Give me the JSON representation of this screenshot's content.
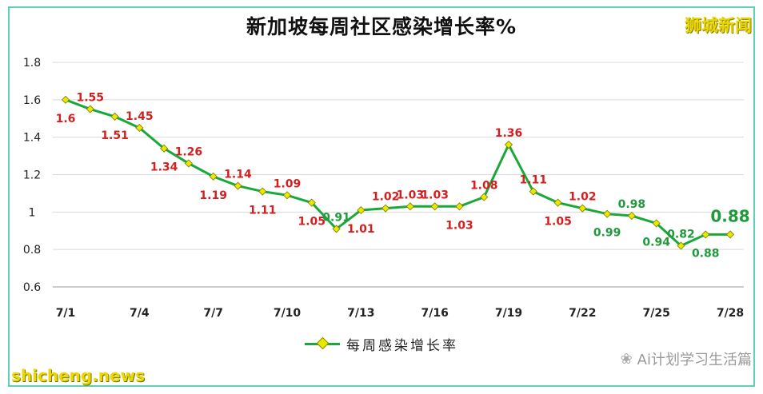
{
  "chart_data": {
    "type": "line",
    "title": "新加坡每周社区感染增长率%",
    "ylim": [
      0.6,
      1.8
    ],
    "yticks": [
      "0.6",
      "0.8",
      "1",
      "1.2",
      "1.4",
      "1.6",
      "1.8"
    ],
    "xtick_labels": [
      "7/1",
      "7/4",
      "7/7",
      "7/10",
      "7/13",
      "7/16",
      "7/19",
      "7/22",
      "7/25",
      "7/28"
    ],
    "categories": [
      "7/1",
      "7/2",
      "7/3",
      "7/4",
      "7/5",
      "7/6",
      "7/7",
      "7/8",
      "7/9",
      "7/10",
      "7/11",
      "7/12",
      "7/13",
      "7/14",
      "7/15",
      "7/16",
      "7/17",
      "7/18",
      "7/19",
      "7/20",
      "7/21",
      "7/22",
      "7/23",
      "7/24",
      "7/25",
      "7/26",
      "7/27",
      "7/28"
    ],
    "series": [
      {
        "name": "每周感染增长率",
        "values": [
          1.6,
          1.55,
          1.51,
          1.45,
          1.34,
          1.26,
          1.19,
          1.14,
          1.11,
          1.09,
          1.05,
          0.91,
          1.01,
          1.02,
          1.03,
          1.03,
          1.03,
          1.08,
          1.36,
          1.11,
          1.05,
          1.02,
          0.99,
          0.98,
          0.94,
          0.82,
          0.88,
          0.88
        ],
        "labels": [
          "1.6",
          "1.55",
          "1.51",
          "1.45",
          "1.34",
          "1.26",
          "1.19",
          "1.14",
          "1.11",
          "1.09",
          "1.05",
          "0.91",
          "1.01",
          "1.02",
          "1.03",
          "1.03",
          "1.03",
          "1.08",
          "1.36",
          "1.11",
          "1.05",
          "1.02",
          "0.99",
          "0.98",
          "0.94",
          "0.82",
          "0.88",
          "0.88"
        ]
      }
    ],
    "grid": true,
    "legend": "bottom-center",
    "colors": {
      "line": "#1aa83b",
      "marker": "#e9e800",
      "label_red": "#d21f1f",
      "label_green": "#1f9a3a",
      "grid": "#d9d9d9"
    }
  },
  "brand": "狮城新闻",
  "watermark": "Ai计划学习生活篇",
  "credit": "shicheng.news"
}
